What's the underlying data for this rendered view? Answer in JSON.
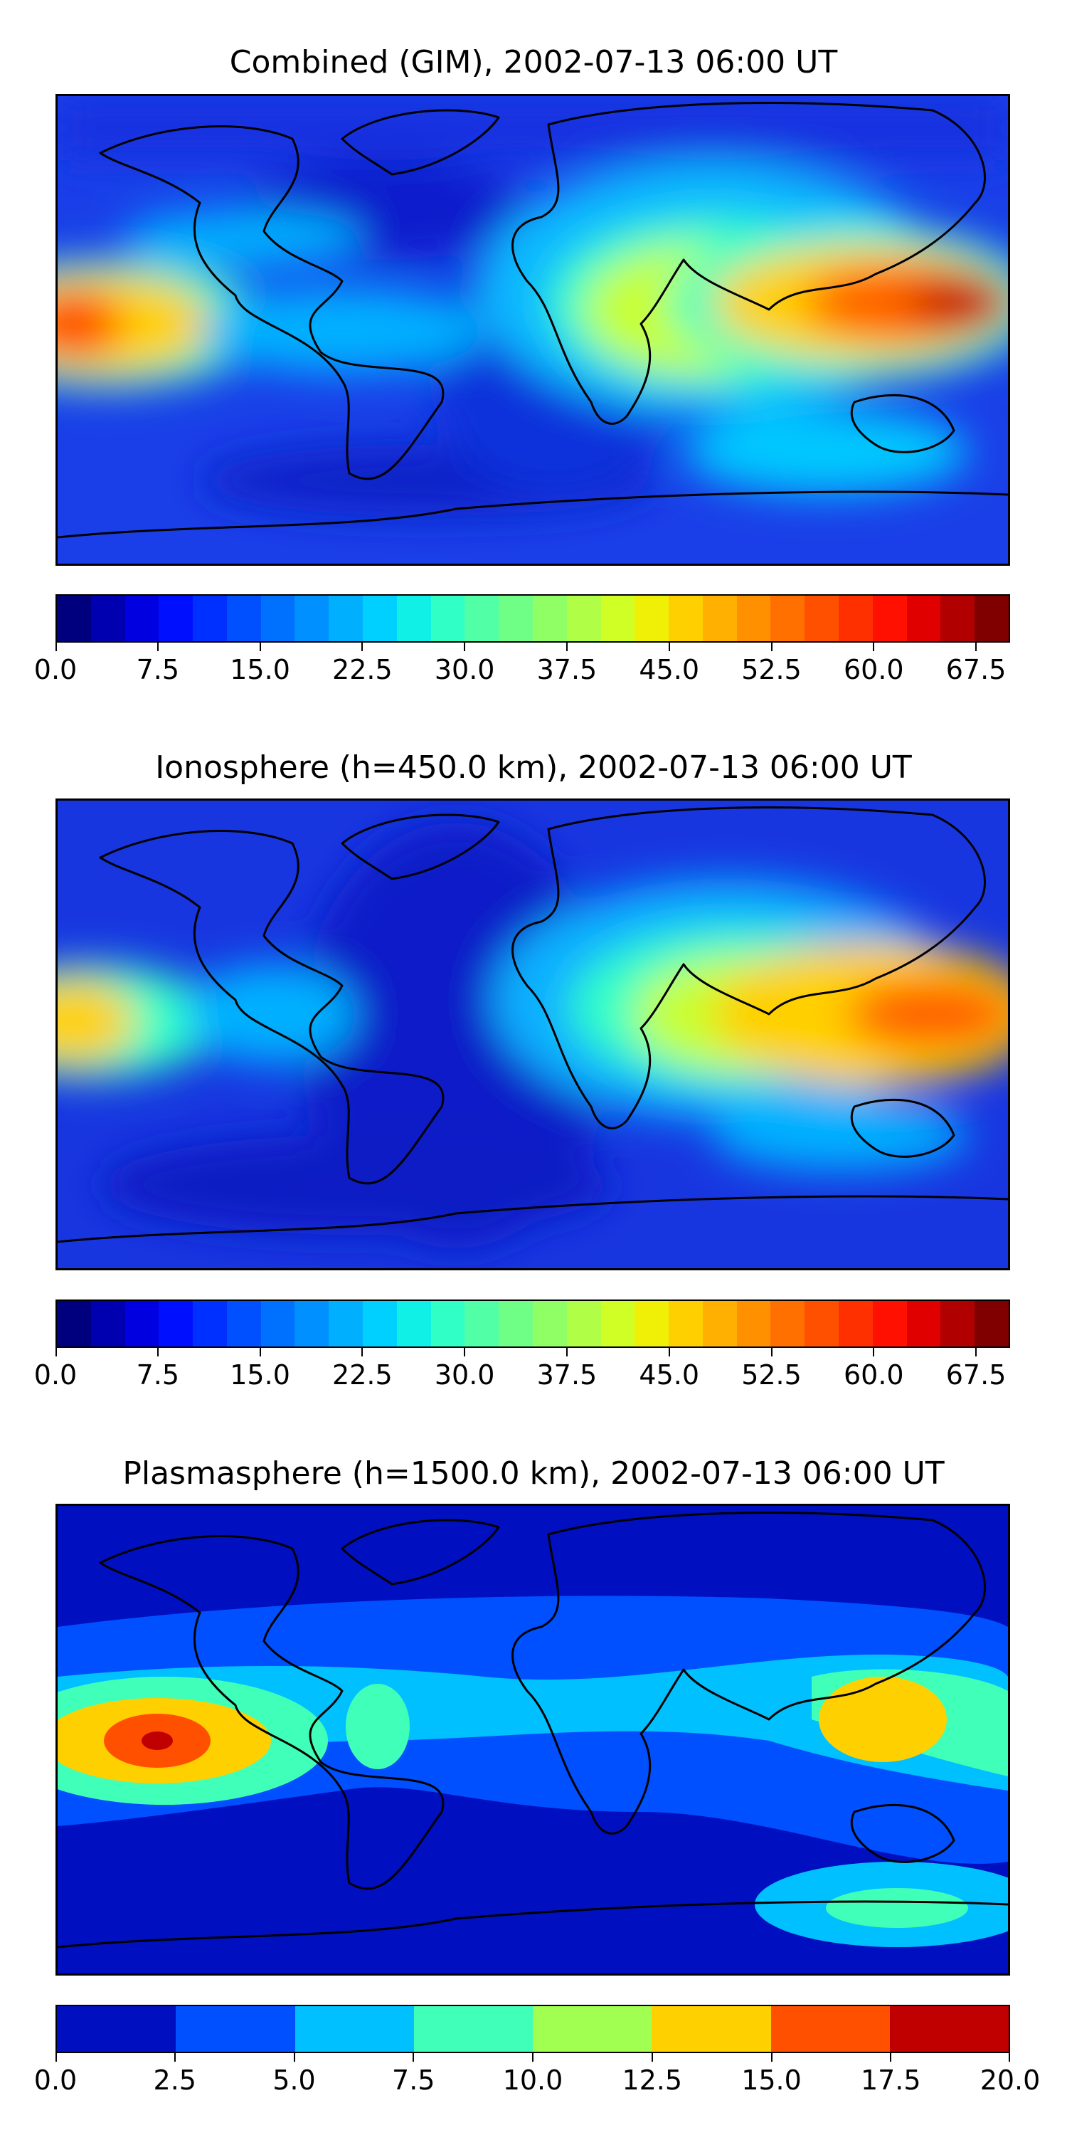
{
  "panels": [
    {
      "title": "Combined (GIM), 2002-07-13 06:00 UT",
      "colorbar": {
        "colors": [
          "#00007f",
          "#0000b0",
          "#0000e0",
          "#0010ff",
          "#0030ff",
          "#0050ff",
          "#0070ff",
          "#0090ff",
          "#00b0ff",
          "#00d0ff",
          "#10f0e6",
          "#30ffc6",
          "#50ffa6",
          "#70ff86",
          "#90ff66",
          "#b0ff46",
          "#d0ff26",
          "#f0f006",
          "#ffd000",
          "#ffb000",
          "#ff9000",
          "#ff7000",
          "#ff5000",
          "#ff3000",
          "#ff1000",
          "#e00000",
          "#b00000",
          "#800000"
        ],
        "tick_labels": [
          "0.0",
          "7.5",
          "15.0",
          "22.5",
          "30.0",
          "37.5",
          "45.0",
          "52.5",
          "60.0",
          "67.5"
        ],
        "ticks": [
          0,
          7.5,
          15,
          22.5,
          30,
          37.5,
          45,
          52.5,
          60,
          67.5
        ],
        "vmin": 0,
        "vmax": 70
      }
    },
    {
      "title": "Ionosphere  (h=450.0 km), 2002-07-13 06:00 UT",
      "colorbar": {
        "colors": [
          "#00007f",
          "#0000b0",
          "#0000e0",
          "#0010ff",
          "#0030ff",
          "#0050ff",
          "#0070ff",
          "#0090ff",
          "#00b0ff",
          "#00d0ff",
          "#10f0e6",
          "#30ffc6",
          "#50ffa6",
          "#70ff86",
          "#90ff66",
          "#b0ff46",
          "#d0ff26",
          "#f0f006",
          "#ffd000",
          "#ffb000",
          "#ff9000",
          "#ff7000",
          "#ff5000",
          "#ff3000",
          "#ff1000",
          "#e00000",
          "#b00000",
          "#800000"
        ],
        "tick_labels": [
          "0.0",
          "7.5",
          "15.0",
          "22.5",
          "30.0",
          "37.5",
          "45.0",
          "52.5",
          "60.0",
          "67.5"
        ],
        "ticks": [
          0,
          7.5,
          15,
          22.5,
          30,
          37.5,
          45,
          52.5,
          60,
          67.5
        ],
        "vmin": 0,
        "vmax": 70
      }
    },
    {
      "title": "Plasmasphere (h=1500.0 km), 2002-07-13 06:00 UT",
      "colorbar": {
        "colors": [
          "#0010c0",
          "#0050ff",
          "#00c0ff",
          "#40ffb8",
          "#a0ff50",
          "#ffd000",
          "#ff5000",
          "#c00000"
        ],
        "tick_labels": [
          "0.0",
          "2.5",
          "5.0",
          "7.5",
          "10.0",
          "12.5",
          "15.0",
          "17.5",
          "20.0"
        ],
        "ticks": [
          0,
          2.5,
          5,
          7.5,
          10,
          12.5,
          15,
          17.5,
          20
        ],
        "vmin": 0,
        "vmax": 20
      }
    }
  ],
  "map_colors": {
    "background": "#1b3be6",
    "coast": "#000000"
  }
}
